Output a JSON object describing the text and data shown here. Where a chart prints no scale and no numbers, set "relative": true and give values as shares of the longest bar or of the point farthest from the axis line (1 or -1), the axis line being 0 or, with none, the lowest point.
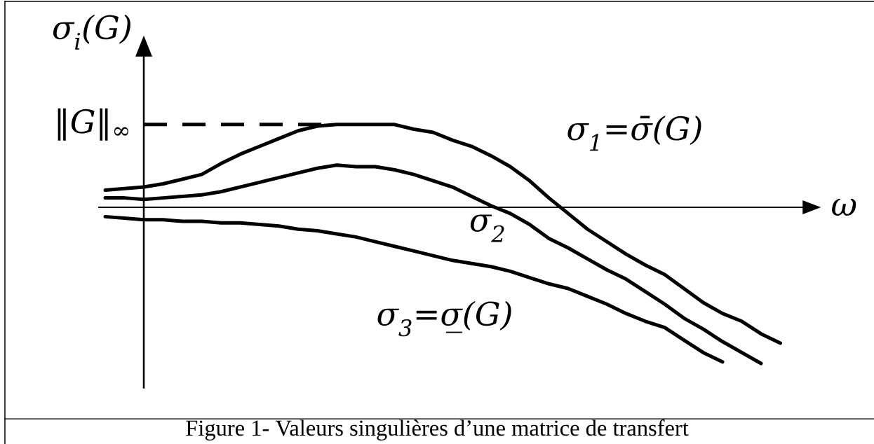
{
  "chart_data": {
    "type": "line",
    "relative": true,
    "xlabel": "ω",
    "ylabel": "σ$_{i}$(G)",
    "line_style": "solid",
    "categories": [
      null,
      null,
      null,
      null,
      null,
      null,
      null,
      null,
      null,
      null,
      null,
      null,
      null,
      null,
      null,
      null,
      null,
      null,
      null,
      null,
      null,
      null,
      null,
      null,
      null,
      null,
      null,
      null,
      null,
      null,
      null,
      null,
      null,
      null,
      null,
      null
    ],
    "series": [
      {
        "name": "σ$_{1}$=σ̄(G)",
        "color": "#000000",
        "values": [
          0.11,
          0.12,
          0.13,
          0.15,
          0.18,
          0.21,
          0.28,
          0.34,
          0.39,
          0.44,
          0.49,
          0.52,
          0.53,
          0.53,
          0.53,
          0.53,
          0.5,
          0.48,
          0.43,
          0.39,
          0.33,
          0.26,
          0.17,
          0.06,
          -0.04,
          -0.14,
          -0.22,
          -0.3,
          -0.37,
          -0.43,
          -0.52,
          -0.61,
          -0.68,
          -0.73,
          -0.81,
          -0.87
        ]
      },
      {
        "name": "σ$_{2}$",
        "color": "#000000",
        "values": [
          0.06,
          0.06,
          0.05,
          0.06,
          0.07,
          0.08,
          0.1,
          0.13,
          0.16,
          0.19,
          0.22,
          0.25,
          0.27,
          0.26,
          0.26,
          0.24,
          0.21,
          0.17,
          0.13,
          0.07,
          0.01,
          -0.04,
          -0.11,
          -0.2,
          -0.26,
          -0.33,
          -0.4,
          -0.46,
          -0.54,
          -0.62,
          -0.71,
          -0.78,
          -0.86,
          -0.93,
          -1,
          null
        ]
      },
      {
        "name": "σ$_{3}$=σ̲(G)",
        "color": "#000000",
        "values": [
          -0.06,
          -0.07,
          -0.08,
          -0.08,
          -0.09,
          -0.09,
          -0.1,
          -0.1,
          -0.11,
          -0.12,
          -0.14,
          -0.15,
          -0.17,
          -0.19,
          -0.22,
          -0.25,
          -0.28,
          -0.31,
          -0.34,
          -0.36,
          -0.38,
          -0.41,
          -0.45,
          -0.49,
          -0.52,
          -0.57,
          -0.62,
          -0.68,
          -0.73,
          -0.77,
          -0.85,
          -0.93,
          -0.99,
          null,
          null,
          null
        ]
      }
    ],
    "ref_lines": [
      {
        "axis": "y",
        "value": 0.53,
        "label": "‖G‖$_{∞}$",
        "line_style": "dashed",
        "color": "#000000"
      }
    ],
    "annotations": [
      "Figure 1- Valeurs singulières d’une matrice de transfert"
    ]
  }
}
